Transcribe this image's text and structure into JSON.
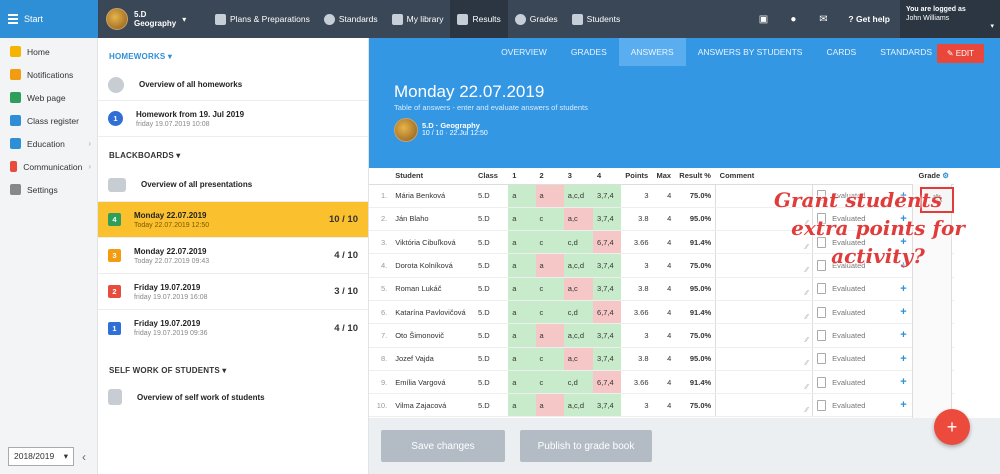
{
  "topbar": {
    "start_label": "Start",
    "class_line1": "5.D",
    "class_line2": "Geography",
    "nav": [
      {
        "label": "Plans & Preparations",
        "icon": "briefcase-icon"
      },
      {
        "label": "Standards",
        "icon": "shield-icon"
      },
      {
        "label": "My library",
        "icon": "library-icon"
      },
      {
        "label": "Results",
        "icon": "bar-chart-icon"
      },
      {
        "label": "Grades",
        "icon": "grades-icon"
      },
      {
        "label": "Students",
        "icon": "students-icon"
      }
    ],
    "help_label": "Get help",
    "user_line1": "You are logged as",
    "user_line2": "John Williams"
  },
  "sidebar": {
    "items": [
      {
        "label": "Home",
        "icon": "star-icon",
        "color": "#f5b400"
      },
      {
        "label": "Notifications",
        "icon": "envelope-icon",
        "color": "#f39c12"
      },
      {
        "label": "Web page",
        "icon": "house-icon",
        "color": "#2e9e5b"
      },
      {
        "label": "Class register",
        "icon": "register-icon",
        "color": "#2f8fd6"
      },
      {
        "label": "Education",
        "icon": "education-icon",
        "color": "#2f8fd6"
      },
      {
        "label": "Communication",
        "icon": "chat-icon",
        "color": "#e74c3c"
      },
      {
        "label": "Settings",
        "icon": "gear-icon",
        "color": "#888888"
      }
    ],
    "year": "2018/2019"
  },
  "middle": {
    "homeworks_title": "HOMEWORKS",
    "homeworks": [
      {
        "title": "Overview of all homeworks",
        "sub": ""
      },
      {
        "title": "Homework from 19. Jul 2019",
        "sub": "friday 19.07.2019 10:08"
      }
    ],
    "blackboards_title": "BLACKBOARDS",
    "overview_presentations": "Overview of all presentations",
    "boards": [
      {
        "num": "4",
        "title": "Monday 22.07.2019",
        "sub": "Today 22.07.2019 12:50",
        "score": "10 / 10",
        "color": "#2e9e5b"
      },
      {
        "num": "3",
        "title": "Monday 22.07.2019",
        "sub": "Today 22.07.2019 09:43",
        "score": "4 / 10",
        "color": "#f39c12"
      },
      {
        "num": "2",
        "title": "Friday 19.07.2019",
        "sub": "friday 19.07.2019 16:08",
        "score": "3 / 10",
        "color": "#e74c3c"
      },
      {
        "num": "1",
        "title": "Friday 19.07.2019",
        "sub": "friday 19.07.2019 09:36",
        "score": "4 / 10",
        "color": "#2f6fd6"
      }
    ],
    "self_work_title": "SELF WORK OF STUDENTS",
    "self_work_overview": "Overview of self work of students"
  },
  "main": {
    "tabs": [
      "OVERVIEW",
      "GRADES",
      "ANSWERS",
      "ANSWERS BY STUDENTS",
      "CARDS",
      "STANDARDS"
    ],
    "active_tab": "ANSWERS",
    "edit_label": "EDIT",
    "title": "Monday 22.07.2019",
    "subtitle": "Table of answers - enter and evaluate answers of students",
    "class_line1": "5.D · Geography",
    "class_line2": "10 / 10 · 22.Jul 12:50",
    "headers": [
      "Student",
      "Class",
      "1",
      "2",
      "3",
      "4",
      "Points",
      "Max",
      "Result %",
      "Comment",
      "Grade"
    ],
    "rows": [
      {
        "n": "1.",
        "name": "Mária Benková",
        "cls": "5.D",
        "a": [
          "a",
          "a",
          "a,c,d",
          "3,7,4"
        ],
        "ok": [
          1,
          0,
          1,
          1
        ],
        "pts": "3",
        "max": "4",
        "res": "75.0%",
        "ev": "Evaluated"
      },
      {
        "n": "2.",
        "name": "Ján Blaho",
        "cls": "5.D",
        "a": [
          "a",
          "c",
          "a,c",
          "3,7,4"
        ],
        "ok": [
          1,
          1,
          0,
          1
        ],
        "pts": "3.8",
        "max": "4",
        "res": "95.0%",
        "ev": "Evaluated"
      },
      {
        "n": "3.",
        "name": "Viktória Cibuľková",
        "cls": "5.D",
        "a": [
          "a",
          "c",
          "c,d",
          "6,7,4"
        ],
        "ok": [
          1,
          1,
          1,
          0
        ],
        "pts": "3.66",
        "max": "4",
        "res": "91.4%",
        "ev": "Evaluated"
      },
      {
        "n": "4.",
        "name": "Dorota Kolníková",
        "cls": "5.D",
        "a": [
          "a",
          "a",
          "a,c,d",
          "3,7,4"
        ],
        "ok": [
          1,
          0,
          1,
          1
        ],
        "pts": "3",
        "max": "4",
        "res": "75.0%",
        "ev": "Evaluated"
      },
      {
        "n": "5.",
        "name": "Roman Lukáč",
        "cls": "5.D",
        "a": [
          "a",
          "c",
          "a,c",
          "3,7,4"
        ],
        "ok": [
          1,
          1,
          0,
          1
        ],
        "pts": "3.8",
        "max": "4",
        "res": "95.0%",
        "ev": "Evaluated"
      },
      {
        "n": "6.",
        "name": "Katarína Pavlovičová",
        "cls": "5.D",
        "a": [
          "a",
          "c",
          "c,d",
          "6,7,4"
        ],
        "ok": [
          1,
          1,
          1,
          0
        ],
        "pts": "3.66",
        "max": "4",
        "res": "91.4%",
        "ev": "Evaluated"
      },
      {
        "n": "7.",
        "name": "Oto Šimonovič",
        "cls": "5.D",
        "a": [
          "a",
          "a",
          "a,c,d",
          "3,7,4"
        ],
        "ok": [
          1,
          0,
          1,
          1
        ],
        "pts": "3",
        "max": "4",
        "res": "75.0%",
        "ev": "Evaluated"
      },
      {
        "n": "8.",
        "name": "Jozef Vajda",
        "cls": "5.D",
        "a": [
          "a",
          "c",
          "a,c",
          "3,7,4"
        ],
        "ok": [
          1,
          1,
          0,
          1
        ],
        "pts": "3.8",
        "max": "4",
        "res": "95.0%",
        "ev": "Evaluated"
      },
      {
        "n": "9.",
        "name": "Emília Vargová",
        "cls": "5.D",
        "a": [
          "a",
          "c",
          "c,d",
          "6,7,4"
        ],
        "ok": [
          1,
          1,
          1,
          0
        ],
        "pts": "3.66",
        "max": "4",
        "res": "91.4%",
        "ev": "Evaluated"
      },
      {
        "n": "10.",
        "name": "Vilma Zajacová",
        "cls": "5.D",
        "a": [
          "a",
          "a",
          "a,c,d",
          "3,7,4"
        ],
        "ok": [
          1,
          0,
          1,
          1
        ],
        "pts": "3",
        "max": "4",
        "res": "75.0%",
        "ev": "Evaluated"
      }
    ],
    "annotation_line1": "Grant students",
    "annotation_line2": "extra points for activity?",
    "save_label": "Save changes",
    "publish_label": "Publish to grade book",
    "fab_label": "+"
  }
}
